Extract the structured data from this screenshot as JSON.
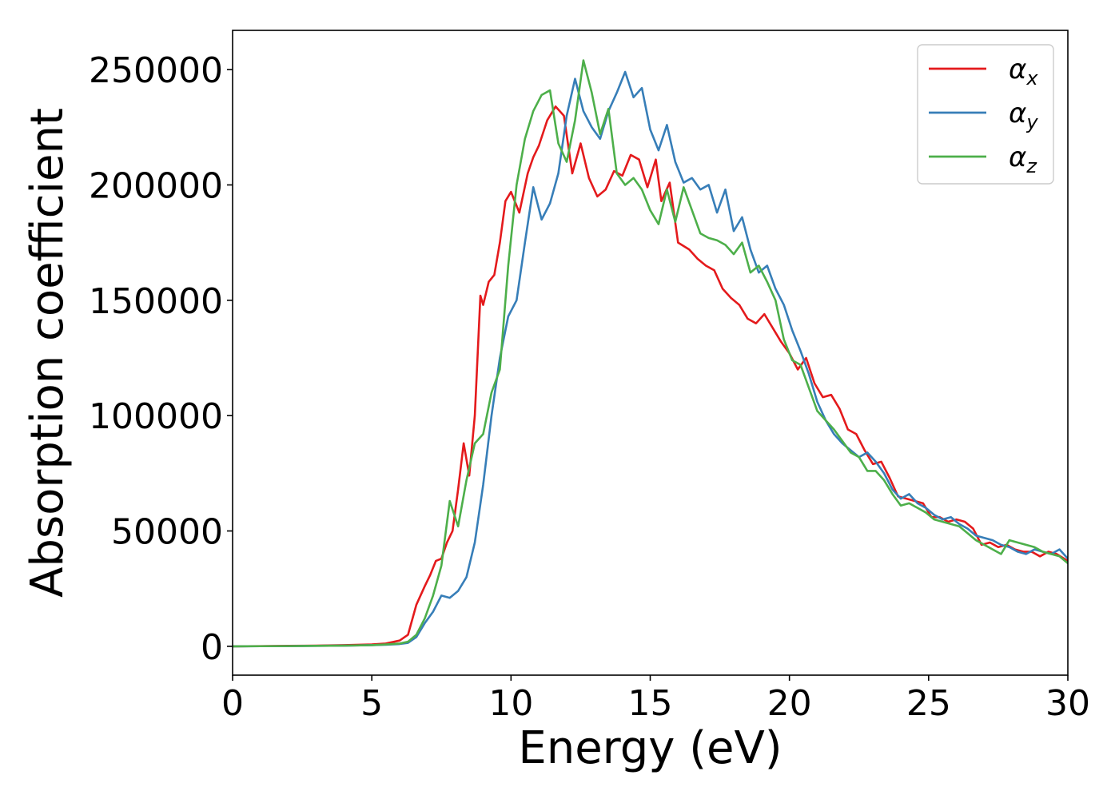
{
  "chart_data": {
    "type": "line",
    "xlabel": "Energy (eV)",
    "ylabel": "Absorption coefficient",
    "xlim": [
      0,
      30
    ],
    "ylim": [
      -12500,
      267000
    ],
    "xticks": [
      0,
      5,
      10,
      15,
      20,
      25,
      30
    ],
    "xtick_labels": [
      "0",
      "5",
      "10",
      "15",
      "20",
      "25",
      "30"
    ],
    "yticks": [
      0,
      50000,
      100000,
      150000,
      200000,
      250000
    ],
    "ytick_labels": [
      "0",
      "50000",
      "100000",
      "150000",
      "200000",
      "250000"
    ],
    "grid": false,
    "legend_position": "top-right",
    "series": [
      {
        "name": "α_x",
        "legend_symbol": "α",
        "legend_subscript": "x",
        "color": "#e41a1c",
        "points": [
          [
            0,
            0
          ],
          [
            1,
            100
          ],
          [
            2,
            200
          ],
          [
            3,
            300
          ],
          [
            4,
            500
          ],
          [
            5,
            800
          ],
          [
            5.5,
            1200
          ],
          [
            6,
            2500
          ],
          [
            6.3,
            5000
          ],
          [
            6.6,
            18000
          ],
          [
            6.9,
            26000
          ],
          [
            7.1,
            31000
          ],
          [
            7.3,
            37000
          ],
          [
            7.5,
            38000
          ],
          [
            7.7,
            45000
          ],
          [
            7.9,
            50000
          ],
          [
            8.1,
            68000
          ],
          [
            8.3,
            88000
          ],
          [
            8.5,
            74000
          ],
          [
            8.7,
            100000
          ],
          [
            8.9,
            152000
          ],
          [
            9.0,
            148000
          ],
          [
            9.2,
            158000
          ],
          [
            9.4,
            161000
          ],
          [
            9.6,
            175000
          ],
          [
            9.8,
            193000
          ],
          [
            10.0,
            197000
          ],
          [
            10.3,
            188000
          ],
          [
            10.6,
            205000
          ],
          [
            10.8,
            212000
          ],
          [
            11.0,
            217000
          ],
          [
            11.3,
            228000
          ],
          [
            11.6,
            234000
          ],
          [
            11.9,
            230000
          ],
          [
            12.2,
            205000
          ],
          [
            12.5,
            218000
          ],
          [
            12.8,
            203000
          ],
          [
            13.1,
            195000
          ],
          [
            13.4,
            198000
          ],
          [
            13.7,
            206000
          ],
          [
            14.0,
            204000
          ],
          [
            14.3,
            213000
          ],
          [
            14.6,
            211000
          ],
          [
            14.9,
            199000
          ],
          [
            15.2,
            211000
          ],
          [
            15.4,
            193000
          ],
          [
            15.7,
            201000
          ],
          [
            16.0,
            175000
          ],
          [
            16.4,
            172000
          ],
          [
            16.7,
            168000
          ],
          [
            17.0,
            165000
          ],
          [
            17.3,
            163000
          ],
          [
            17.6,
            155000
          ],
          [
            17.9,
            151000
          ],
          [
            18.2,
            148000
          ],
          [
            18.5,
            142000
          ],
          [
            18.8,
            140000
          ],
          [
            19.1,
            144000
          ],
          [
            19.4,
            138000
          ],
          [
            19.7,
            132000
          ],
          [
            20.0,
            127000
          ],
          [
            20.3,
            120000
          ],
          [
            20.6,
            125000
          ],
          [
            20.9,
            114000
          ],
          [
            21.2,
            108000
          ],
          [
            21.5,
            109000
          ],
          [
            21.8,
            103000
          ],
          [
            22.1,
            94000
          ],
          [
            22.4,
            92000
          ],
          [
            22.7,
            85000
          ],
          [
            23.0,
            79000
          ],
          [
            23.3,
            80000
          ],
          [
            23.6,
            73000
          ],
          [
            23.9,
            65000
          ],
          [
            24.2,
            64000
          ],
          [
            24.5,
            63000
          ],
          [
            24.8,
            62000
          ],
          [
            25.1,
            56000
          ],
          [
            25.4,
            56000
          ],
          [
            25.7,
            54000
          ],
          [
            26.0,
            55000
          ],
          [
            26.3,
            54000
          ],
          [
            26.6,
            51000
          ],
          [
            26.9,
            44000
          ],
          [
            27.2,
            45000
          ],
          [
            27.5,
            43000
          ],
          [
            27.8,
            44000
          ],
          [
            28.1,
            42000
          ],
          [
            28.4,
            41000
          ],
          [
            28.7,
            41000
          ],
          [
            29.0,
            39000
          ],
          [
            29.3,
            41000
          ],
          [
            29.6,
            40000
          ],
          [
            30.0,
            37000
          ]
        ]
      },
      {
        "name": "α_y",
        "legend_symbol": "α",
        "legend_subscript": "y",
        "color": "#377eb8",
        "points": [
          [
            0,
            0
          ],
          [
            1,
            50
          ],
          [
            2,
            100
          ],
          [
            3,
            200
          ],
          [
            4,
            300
          ],
          [
            5,
            500
          ],
          [
            5.5,
            700
          ],
          [
            6,
            1000
          ],
          [
            6.3,
            1500
          ],
          [
            6.6,
            4000
          ],
          [
            6.9,
            10000
          ],
          [
            7.2,
            15000
          ],
          [
            7.5,
            22000
          ],
          [
            7.8,
            21000
          ],
          [
            8.1,
            24000
          ],
          [
            8.4,
            30000
          ],
          [
            8.7,
            45000
          ],
          [
            9.0,
            70000
          ],
          [
            9.3,
            100000
          ],
          [
            9.6,
            125000
          ],
          [
            9.9,
            143000
          ],
          [
            10.2,
            150000
          ],
          [
            10.5,
            175000
          ],
          [
            10.8,
            199000
          ],
          [
            11.1,
            185000
          ],
          [
            11.4,
            192000
          ],
          [
            11.7,
            205000
          ],
          [
            12.0,
            230000
          ],
          [
            12.3,
            246000
          ],
          [
            12.6,
            232000
          ],
          [
            12.9,
            225000
          ],
          [
            13.2,
            220000
          ],
          [
            13.5,
            232000
          ],
          [
            13.8,
            240000
          ],
          [
            14.1,
            249000
          ],
          [
            14.4,
            238000
          ],
          [
            14.7,
            242000
          ],
          [
            15.0,
            224000
          ],
          [
            15.3,
            215000
          ],
          [
            15.6,
            226000
          ],
          [
            15.9,
            210000
          ],
          [
            16.2,
            201000
          ],
          [
            16.5,
            203000
          ],
          [
            16.8,
            198000
          ],
          [
            17.1,
            200000
          ],
          [
            17.4,
            188000
          ],
          [
            17.7,
            198000
          ],
          [
            18.0,
            180000
          ],
          [
            18.3,
            186000
          ],
          [
            18.6,
            172000
          ],
          [
            18.9,
            162000
          ],
          [
            19.2,
            165000
          ],
          [
            19.5,
            155000
          ],
          [
            19.8,
            148000
          ],
          [
            20.1,
            137000
          ],
          [
            20.4,
            128000
          ],
          [
            20.7,
            118000
          ],
          [
            21.0,
            106000
          ],
          [
            21.3,
            98000
          ],
          [
            21.6,
            92000
          ],
          [
            21.9,
            88000
          ],
          [
            22.2,
            85000
          ],
          [
            22.5,
            82000
          ],
          [
            22.8,
            84000
          ],
          [
            23.1,
            80000
          ],
          [
            23.4,
            75000
          ],
          [
            23.7,
            68000
          ],
          [
            24.0,
            64000
          ],
          [
            24.3,
            66000
          ],
          [
            24.6,
            62000
          ],
          [
            24.9,
            60000
          ],
          [
            25.2,
            57000
          ],
          [
            25.5,
            55000
          ],
          [
            25.8,
            56000
          ],
          [
            26.1,
            53000
          ],
          [
            26.4,
            51000
          ],
          [
            26.7,
            48000
          ],
          [
            27.0,
            47000
          ],
          [
            27.3,
            46000
          ],
          [
            27.6,
            44000
          ],
          [
            27.9,
            43000
          ],
          [
            28.2,
            41000
          ],
          [
            28.5,
            40000
          ],
          [
            28.8,
            42000
          ],
          [
            29.1,
            41000
          ],
          [
            29.4,
            40000
          ],
          [
            29.7,
            42000
          ],
          [
            30.0,
            38000
          ]
        ]
      },
      {
        "name": "α_z",
        "legend_symbol": "α",
        "legend_subscript": "z",
        "color": "#4daf4a",
        "points": [
          [
            0,
            0
          ],
          [
            1,
            50
          ],
          [
            2,
            100
          ],
          [
            3,
            200
          ],
          [
            4,
            300
          ],
          [
            5,
            500
          ],
          [
            5.5,
            800
          ],
          [
            6,
            1200
          ],
          [
            6.3,
            2000
          ],
          [
            6.6,
            5000
          ],
          [
            6.9,
            12000
          ],
          [
            7.2,
            22000
          ],
          [
            7.5,
            35000
          ],
          [
            7.8,
            63000
          ],
          [
            8.1,
            52000
          ],
          [
            8.4,
            72000
          ],
          [
            8.7,
            88000
          ],
          [
            9.0,
            92000
          ],
          [
            9.3,
            110000
          ],
          [
            9.6,
            120000
          ],
          [
            9.9,
            165000
          ],
          [
            10.2,
            200000
          ],
          [
            10.5,
            220000
          ],
          [
            10.8,
            232000
          ],
          [
            11.1,
            239000
          ],
          [
            11.4,
            241000
          ],
          [
            11.7,
            218000
          ],
          [
            12.0,
            210000
          ],
          [
            12.3,
            228000
          ],
          [
            12.6,
            254000
          ],
          [
            12.9,
            240000
          ],
          [
            13.2,
            222000
          ],
          [
            13.5,
            233000
          ],
          [
            13.8,
            205000
          ],
          [
            14.1,
            200000
          ],
          [
            14.4,
            203000
          ],
          [
            14.7,
            198000
          ],
          [
            15.0,
            189000
          ],
          [
            15.3,
            183000
          ],
          [
            15.6,
            198000
          ],
          [
            15.9,
            184000
          ],
          [
            16.2,
            199000
          ],
          [
            16.5,
            189000
          ],
          [
            16.8,
            179000
          ],
          [
            17.1,
            177000
          ],
          [
            17.4,
            176000
          ],
          [
            17.7,
            174000
          ],
          [
            18.0,
            170000
          ],
          [
            18.3,
            175000
          ],
          [
            18.6,
            162000
          ],
          [
            18.9,
            165000
          ],
          [
            19.2,
            158000
          ],
          [
            19.5,
            150000
          ],
          [
            19.8,
            133000
          ],
          [
            20.1,
            124000
          ],
          [
            20.4,
            122000
          ],
          [
            20.7,
            112000
          ],
          [
            21.0,
            102000
          ],
          [
            21.3,
            98000
          ],
          [
            21.6,
            94000
          ],
          [
            21.9,
            89000
          ],
          [
            22.2,
            84000
          ],
          [
            22.5,
            82000
          ],
          [
            22.8,
            76000
          ],
          [
            23.1,
            76000
          ],
          [
            23.4,
            72000
          ],
          [
            23.7,
            66000
          ],
          [
            24.0,
            61000
          ],
          [
            24.3,
            62000
          ],
          [
            24.6,
            60000
          ],
          [
            24.9,
            58000
          ],
          [
            25.2,
            55000
          ],
          [
            25.5,
            54000
          ],
          [
            25.8,
            53000
          ],
          [
            26.1,
            52000
          ],
          [
            26.4,
            49000
          ],
          [
            26.7,
            46000
          ],
          [
            27.0,
            44000
          ],
          [
            27.3,
            42000
          ],
          [
            27.6,
            40000
          ],
          [
            27.9,
            46000
          ],
          [
            28.2,
            45000
          ],
          [
            28.5,
            44000
          ],
          [
            28.8,
            43000
          ],
          [
            29.1,
            41000
          ],
          [
            29.4,
            40000
          ],
          [
            29.7,
            39000
          ],
          [
            30.0,
            36000
          ]
        ]
      }
    ]
  }
}
